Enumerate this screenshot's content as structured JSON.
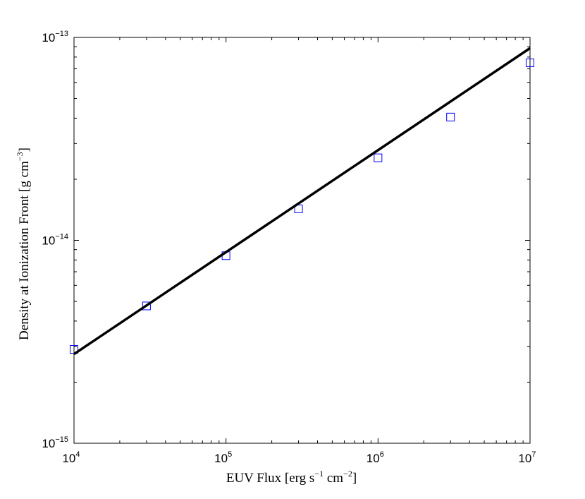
{
  "chart_data": {
    "type": "scatter",
    "xlabel": {
      "prefix": "EUV Flux [erg s",
      "exp1": "−1",
      "mid": " cm",
      "exp2": "−2",
      "suffix": "]"
    },
    "ylabel": {
      "prefix": "Density at Ionization Front [g cm",
      "exp1": "−3",
      "suffix": "]"
    },
    "x_scale": "log",
    "y_scale": "log",
    "xlim": [
      10000,
      10000000
    ],
    "ylim": [
      1e-15,
      1e-13
    ],
    "x_ticks": [
      {
        "base": "10",
        "exp": "4",
        "value": 10000
      },
      {
        "base": "10",
        "exp": "5",
        "value": 100000
      },
      {
        "base": "10",
        "exp": "6",
        "value": 1000000
      },
      {
        "base": "10",
        "exp": "7",
        "value": 10000000
      }
    ],
    "y_ticks": [
      {
        "base": "10",
        "exp": "−15",
        "value": 1e-15
      },
      {
        "base": "10",
        "exp": "−14",
        "value": 1e-14
      },
      {
        "base": "10",
        "exp": "−13",
        "value": 1e-13
      }
    ],
    "grid": false,
    "series": [
      {
        "kind": "markers",
        "marker": "square",
        "color": "#0000ff",
        "x": [
          10000,
          30000,
          100000,
          300000,
          1000000,
          3000000,
          10000000
        ],
        "y": [
          2.9e-15,
          4.75e-15,
          8.4e-15,
          1.43e-14,
          2.55e-14,
          4.05e-14,
          7.5e-14
        ]
      },
      {
        "kind": "line",
        "color": "#000000",
        "x": [
          10000,
          10000000
        ],
        "y": [
          2.75e-15,
          8.85e-14
        ]
      }
    ]
  }
}
